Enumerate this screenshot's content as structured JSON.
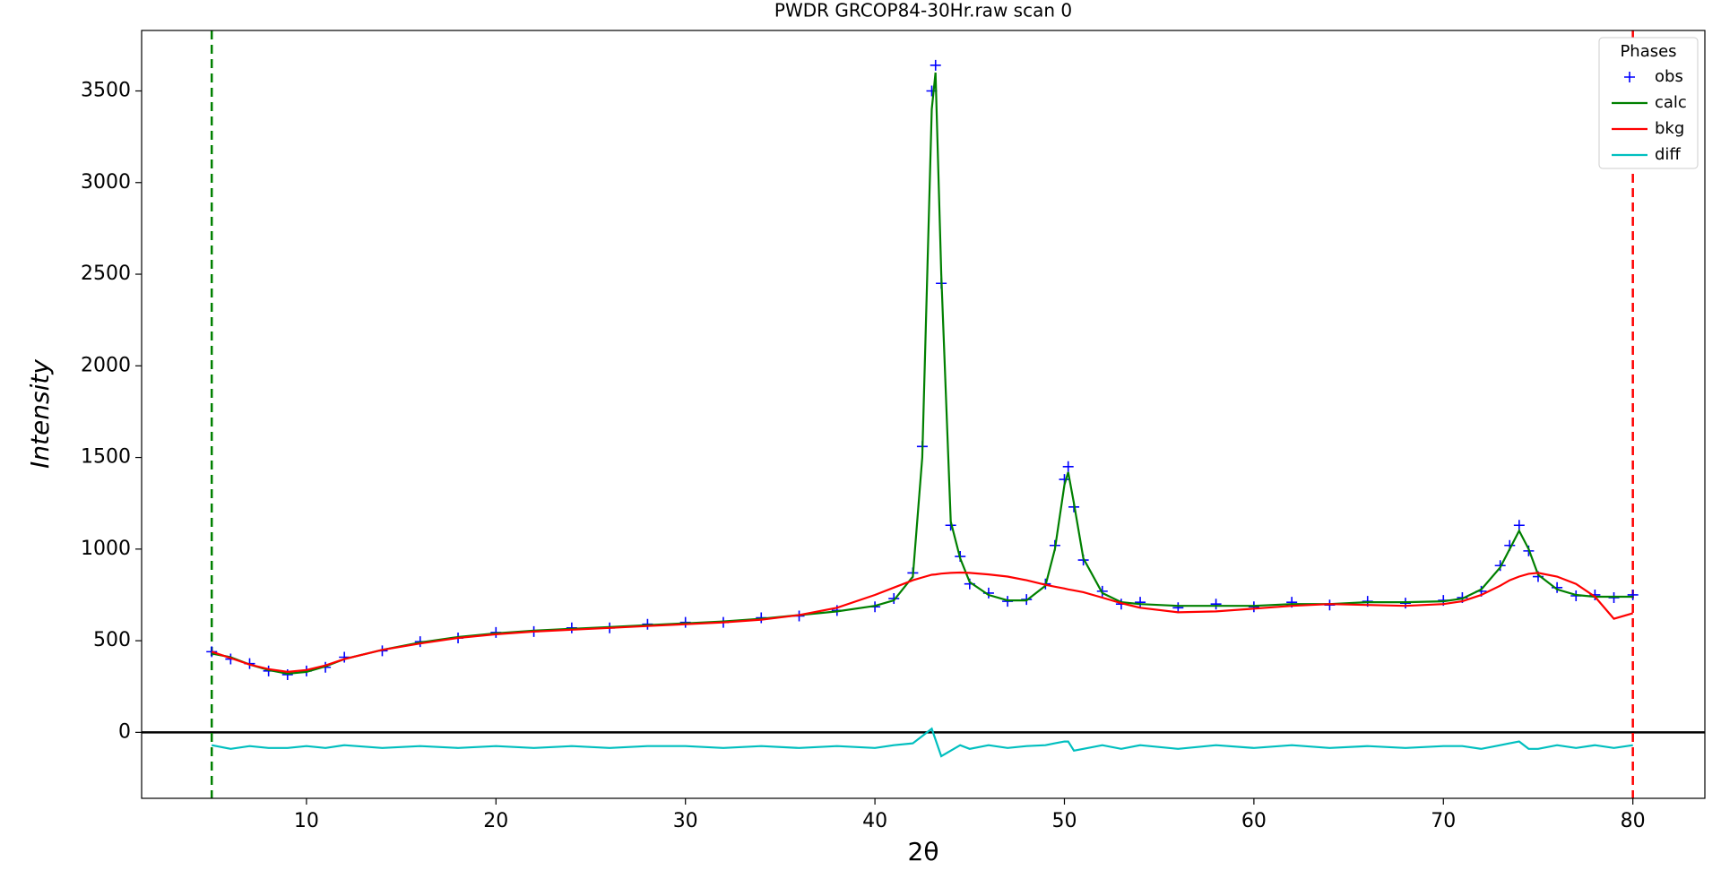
{
  "chart_data": {
    "type": "line",
    "title": "PWDR GRCOP84-30Hr.raw scan 0",
    "xlabel": "2θ",
    "ylabel": "Intensity",
    "x": [
      5,
      6,
      7,
      8,
      9,
      10,
      11,
      12,
      14,
      16,
      18,
      20,
      22,
      24,
      26,
      28,
      30,
      32,
      34,
      36,
      38,
      40,
      41,
      42,
      42.5,
      43,
      43.2,
      43.5,
      44,
      44.5,
      45,
      46,
      47,
      48,
      49,
      49.5,
      50,
      50.2,
      50.5,
      51,
      52,
      53,
      54,
      56,
      58,
      60,
      62,
      64,
      66,
      68,
      70,
      71,
      72,
      73,
      73.5,
      74,
      74.5,
      75,
      76,
      77,
      78,
      79,
      80
    ],
    "series": [
      {
        "name": "obs",
        "color": "#0000ff",
        "marker": "+",
        "values": [
          440,
          400,
          375,
          335,
          315,
          335,
          355,
          410,
          445,
          495,
          515,
          545,
          550,
          570,
          570,
          590,
          600,
          600,
          625,
          635,
          665,
          685,
          730,
          870,
          1560,
          3500,
          3640,
          2450,
          1130,
          960,
          810,
          760,
          715,
          725,
          810,
          1020,
          1380,
          1450,
          1230,
          940,
          770,
          700,
          710,
          680,
          700,
          685,
          710,
          695,
          715,
          705,
          720,
          735,
          770,
          910,
          1020,
          1130,
          990,
          850,
          790,
          745,
          750,
          735,
          750
        ]
      },
      {
        "name": "calc",
        "color": "#008000",
        "values": [
          430,
          410,
          370,
          340,
          320,
          330,
          360,
          400,
          450,
          490,
          520,
          540,
          555,
          565,
          575,
          585,
          595,
          605,
          620,
          640,
          660,
          690,
          720,
          850,
          1500,
          3400,
          3600,
          2500,
          1150,
          950,
          820,
          750,
          720,
          720,
          800,
          1000,
          1350,
          1420,
          1250,
          950,
          760,
          710,
          700,
          690,
          690,
          690,
          700,
          700,
          710,
          710,
          715,
          730,
          780,
          900,
          1000,
          1100,
          1000,
          860,
          780,
          750,
          740,
          740,
          740
        ]
      },
      {
        "name": "bkg",
        "color": "#ff0000",
        "values": [
          440,
          405,
          370,
          345,
          330,
          340,
          365,
          400,
          450,
          485,
          515,
          535,
          550,
          560,
          570,
          580,
          590,
          600,
          615,
          640,
          680,
          750,
          790,
          830,
          845,
          860,
          862,
          866,
          870,
          872,
          870,
          862,
          850,
          830,
          805,
          795,
          785,
          780,
          775,
          765,
          735,
          705,
          680,
          655,
          660,
          675,
          690,
          700,
          695,
          690,
          700,
          715,
          750,
          800,
          830,
          850,
          865,
          870,
          850,
          810,
          740,
          620,
          650
        ]
      },
      {
        "name": "diff",
        "color": "#00bfbf",
        "values": [
          -70,
          -90,
          -75,
          -85,
          -85,
          -75,
          -85,
          -70,
          -85,
          -75,
          -85,
          -75,
          -85,
          -75,
          -85,
          -75,
          -75,
          -85,
          -75,
          -85,
          -75,
          -85,
          -70,
          -60,
          -20,
          20,
          -40,
          -130,
          -100,
          -70,
          -90,
          -70,
          -85,
          -75,
          -70,
          -60,
          -50,
          -50,
          -100,
          -90,
          -70,
          -90,
          -70,
          -90,
          -70,
          -85,
          -70,
          -85,
          -75,
          -85,
          -75,
          -75,
          -90,
          -70,
          -60,
          -50,
          -90,
          -90,
          -70,
          -85,
          -70,
          -85,
          -70
        ]
      }
    ],
    "limits": [
      {
        "value": 5,
        "color": "#008000"
      },
      {
        "value": 80,
        "color": "#ff0000"
      }
    ],
    "zero_line": 0,
    "xlim": [
      1.3,
      83.8
    ],
    "ylim": [
      -360,
      3830
    ],
    "xticks": [
      10,
      20,
      30,
      40,
      50,
      60,
      70,
      80
    ],
    "yticks": [
      0,
      500,
      1000,
      1500,
      2000,
      2500,
      3000,
      3500
    ],
    "legend_title": "Phases",
    "legend": "upper right"
  }
}
